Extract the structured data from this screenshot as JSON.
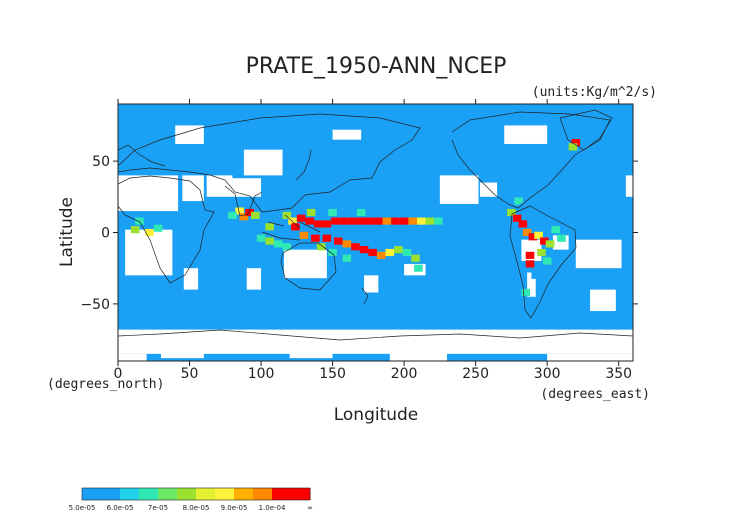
{
  "chart_data": {
    "type": "heatmap",
    "title": "PRATE_1950-ANN_NCEP",
    "units": "(units:Kg/m^2/s)",
    "xlabel": "Longitude",
    "ylabel": "Latitude",
    "x_unit_note": "(degrees_east)",
    "y_unit_note": "(degrees_north)",
    "xlim": [
      0,
      360
    ],
    "ylim": [
      -90,
      90
    ],
    "x_ticks": [
      0,
      50,
      100,
      150,
      200,
      250,
      300,
      350
    ],
    "x_tick_labels": [
      "0",
      "50",
      "100",
      "150",
      "200",
      "250",
      "300",
      "350"
    ],
    "y_ticks": [
      50,
      0,
      -50
    ],
    "y_tick_labels": [
      "50",
      "0",
      "−50"
    ],
    "colorbar": {
      "labels": [
        "5.0e-05",
        "6.0e-05",
        "7e-05",
        "8.0e-05",
        "9.0e-05",
        "1.0e-04",
        "∞"
      ],
      "bands": [
        {
          "from": 5e-05,
          "to": 6e-05,
          "colors": [
            "#1aa0f5",
            "#1aa0f5"
          ]
        },
        {
          "from": 6e-05,
          "to": 7e-05,
          "colors": [
            "#20d2e8",
            "#30e8b4"
          ]
        },
        {
          "from": 7e-05,
          "to": 8e-05,
          "colors": [
            "#6ce864",
            "#9be230"
          ]
        },
        {
          "from": 8e-05,
          "to": 9e-05,
          "colors": [
            "#e6f032",
            "#fff23a"
          ]
        },
        {
          "from": 9e-05,
          "to": 0.0001,
          "colors": [
            "#ffb000",
            "#ff8a00"
          ]
        },
        {
          "from": 0.0001,
          "to": "inf",
          "colors": [
            "#ff0000",
            "#ff0000"
          ]
        }
      ]
    },
    "background_fill_color": "#1aa0f5",
    "below_threshold_color": "#ffffff",
    "white_regions": [
      {
        "lon": [
          355,
          360
        ],
        "lat": [
          25,
          40
        ]
      },
      {
        "lon": [
          0,
          42
        ],
        "lat": [
          15,
          40
        ]
      },
      {
        "lon": [
          5,
          38
        ],
        "lat": [
          -30,
          2
        ]
      },
      {
        "lon": [
          45,
          60
        ],
        "lat": [
          22,
          40
        ]
      },
      {
        "lon": [
          62,
          80
        ],
        "lat": [
          25,
          40
        ]
      },
      {
        "lon": [
          88,
          115
        ],
        "lat": [
          40,
          58
        ]
      },
      {
        "lon": [
          80,
          100
        ],
        "lat": [
          25,
          38
        ]
      },
      {
        "lon": [
          116,
          146
        ],
        "lat": [
          -32,
          -12
        ]
      },
      {
        "lon": [
          46,
          56
        ],
        "lat": [
          -40,
          -25
        ]
      },
      {
        "lon": [
          90,
          100
        ],
        "lat": [
          -40,
          -25
        ]
      },
      {
        "lon": [
          172,
          182
        ],
        "lat": [
          -42,
          -30
        ]
      },
      {
        "lon": [
          225,
          252
        ],
        "lat": [
          20,
          40
        ]
      },
      {
        "lon": [
          253,
          265
        ],
        "lat": [
          25,
          35
        ]
      },
      {
        "lon": [
          282,
          296
        ],
        "lat": [
          -20,
          -5
        ]
      },
      {
        "lon": [
          286,
          292
        ],
        "lat": [
          -45,
          -28
        ]
      },
      {
        "lon": [
          304,
          315
        ],
        "lat": [
          -12,
          -2
        ]
      },
      {
        "lon": [
          320,
          352
        ],
        "lat": [
          -25,
          -5
        ]
      },
      {
        "lon": [
          330,
          348
        ],
        "lat": [
          -55,
          -40
        ]
      },
      {
        "lon": [
          200,
          215
        ],
        "lat": [
          -30,
          -22
        ]
      },
      {
        "lon": [
          40,
          60
        ],
        "lat": [
          62,
          75
        ]
      },
      {
        "lon": [
          270,
          300
        ],
        "lat": [
          62,
          75
        ]
      },
      {
        "lon": [
          150,
          170
        ],
        "lat": [
          65,
          72
        ]
      },
      {
        "lon": [
          0,
          360
        ],
        "lat": [
          -85,
          -68
        ]
      },
      {
        "lon": [
          0,
          20
        ],
        "lat": [
          -90,
          -85
        ]
      },
      {
        "lon": [
          30,
          60
        ],
        "lat": [
          -88,
          -80
        ]
      },
      {
        "lon": [
          120,
          150
        ],
        "lat": [
          -88,
          -82
        ]
      },
      {
        "lon": [
          190,
          230
        ],
        "lat": [
          -90,
          -84
        ]
      },
      {
        "lon": [
          300,
          360
        ],
        "lat": [
          -90,
          -85
        ]
      }
    ],
    "precip_cells": [
      {
        "lon": 5,
        "lat": 5,
        "level": 1
      },
      {
        "lon": 15,
        "lat": 8,
        "level": 2
      },
      {
        "lon": 12,
        "lat": 2,
        "level": 3
      },
      {
        "lon": 22,
        "lat": 0,
        "level": 4
      },
      {
        "lon": 28,
        "lat": 3,
        "level": 2
      },
      {
        "lon": 33,
        "lat": 8,
        "level": 1
      },
      {
        "lon": 85,
        "lat": 15,
        "level": 4
      },
      {
        "lon": 88,
        "lat": 11,
        "level": 5
      },
      {
        "lon": 92,
        "lat": 14,
        "level": 6
      },
      {
        "lon": 96,
        "lat": 12,
        "level": 3
      },
      {
        "lon": 80,
        "lat": 12,
        "level": 2
      },
      {
        "lon": 82,
        "lat": -5,
        "level": 1
      },
      {
        "lon": 90,
        "lat": -8,
        "level": 1
      },
      {
        "lon": 100,
        "lat": -4,
        "level": 2
      },
      {
        "lon": 106,
        "lat": -6,
        "level": 3
      },
      {
        "lon": 112,
        "lat": -8,
        "level": 2
      },
      {
        "lon": 118,
        "lat": -10,
        "level": 2
      },
      {
        "lon": 106,
        "lat": 4,
        "level": 3
      },
      {
        "lon": 112,
        "lat": 12,
        "level": 1
      },
      {
        "lon": 120,
        "lat": 22,
        "level": 1
      },
      {
        "lon": 125,
        "lat": 28,
        "level": 1
      },
      {
        "lon": 140,
        "lat": 32,
        "level": 1
      },
      {
        "lon": 148,
        "lat": 35,
        "level": 1
      },
      {
        "lon": 118,
        "lat": 12,
        "level": 3
      },
      {
        "lon": 122,
        "lat": 8,
        "level": 4
      },
      {
        "lon": 124,
        "lat": 4,
        "level": 6
      },
      {
        "lon": 128,
        "lat": 10,
        "level": 6
      },
      {
        "lon": 134,
        "lat": 8,
        "level": 6
      },
      {
        "lon": 140,
        "lat": 6,
        "level": 6
      },
      {
        "lon": 146,
        "lat": 6,
        "level": 6
      },
      {
        "lon": 152,
        "lat": 8,
        "level": 6
      },
      {
        "lon": 158,
        "lat": 8,
        "level": 6
      },
      {
        "lon": 164,
        "lat": 8,
        "level": 6
      },
      {
        "lon": 170,
        "lat": 8,
        "level": 6
      },
      {
        "lon": 176,
        "lat": 8,
        "level": 6
      },
      {
        "lon": 182,
        "lat": 8,
        "level": 6
      },
      {
        "lon": 188,
        "lat": 8,
        "level": 5
      },
      {
        "lon": 194,
        "lat": 8,
        "level": 6
      },
      {
        "lon": 200,
        "lat": 8,
        "level": 6
      },
      {
        "lon": 206,
        "lat": 8,
        "level": 5
      },
      {
        "lon": 212,
        "lat": 8,
        "level": 4
      },
      {
        "lon": 218,
        "lat": 8,
        "level": 3
      },
      {
        "lon": 224,
        "lat": 8,
        "level": 2
      },
      {
        "lon": 230,
        "lat": 8,
        "level": 1
      },
      {
        "lon": 135,
        "lat": 14,
        "level": 3
      },
      {
        "lon": 150,
        "lat": 14,
        "level": 2
      },
      {
        "lon": 170,
        "lat": 14,
        "level": 2
      },
      {
        "lon": 190,
        "lat": 14,
        "level": 1
      },
      {
        "lon": 130,
        "lat": -2,
        "level": 5
      },
      {
        "lon": 138,
        "lat": -4,
        "level": 6
      },
      {
        "lon": 146,
        "lat": -4,
        "level": 6
      },
      {
        "lon": 154,
        "lat": -6,
        "level": 6
      },
      {
        "lon": 160,
        "lat": -8,
        "level": 5
      },
      {
        "lon": 166,
        "lat": -10,
        "level": 6
      },
      {
        "lon": 172,
        "lat": -12,
        "level": 6
      },
      {
        "lon": 178,
        "lat": -14,
        "level": 6
      },
      {
        "lon": 184,
        "lat": -16,
        "level": 5
      },
      {
        "lon": 190,
        "lat": -14,
        "level": 4
      },
      {
        "lon": 196,
        "lat": -12,
        "level": 3
      },
      {
        "lon": 202,
        "lat": -14,
        "level": 2
      },
      {
        "lon": 208,
        "lat": -18,
        "level": 3
      },
      {
        "lon": 214,
        "lat": -18,
        "level": 1
      },
      {
        "lon": 142,
        "lat": -10,
        "level": 3
      },
      {
        "lon": 150,
        "lat": -14,
        "level": 2
      },
      {
        "lon": 160,
        "lat": -18,
        "level": 2
      },
      {
        "lon": 275,
        "lat": 14,
        "level": 3
      },
      {
        "lon": 279,
        "lat": 10,
        "level": 6
      },
      {
        "lon": 283,
        "lat": 6,
        "level": 6
      },
      {
        "lon": 286,
        "lat": 0,
        "level": 5
      },
      {
        "lon": 290,
        "lat": -3,
        "level": 6
      },
      {
        "lon": 294,
        "lat": -2,
        "level": 4
      },
      {
        "lon": 298,
        "lat": -6,
        "level": 6
      },
      {
        "lon": 302,
        "lat": -8,
        "level": 3
      },
      {
        "lon": 306,
        "lat": 2,
        "level": 2
      },
      {
        "lon": 310,
        "lat": -4,
        "level": 2
      },
      {
        "lon": 288,
        "lat": -16,
        "level": 6
      },
      {
        "lon": 288,
        "lat": -22,
        "level": 6
      },
      {
        "lon": 296,
        "lat": -14,
        "level": 3
      },
      {
        "lon": 300,
        "lat": -20,
        "level": 2
      },
      {
        "lon": 292,
        "lat": -30,
        "level": 1
      },
      {
        "lon": 285,
        "lat": -42,
        "level": 2
      },
      {
        "lon": 287,
        "lat": -48,
        "level": 1
      },
      {
        "lon": 280,
        "lat": 22,
        "level": 2
      },
      {
        "lon": 284,
        "lat": 18,
        "level": 1
      },
      {
        "lon": 320,
        "lat": 63,
        "level": 6
      },
      {
        "lon": 318,
        "lat": 60,
        "level": 3
      },
      {
        "lon": 210,
        "lat": -25,
        "level": 2
      }
    ]
  }
}
